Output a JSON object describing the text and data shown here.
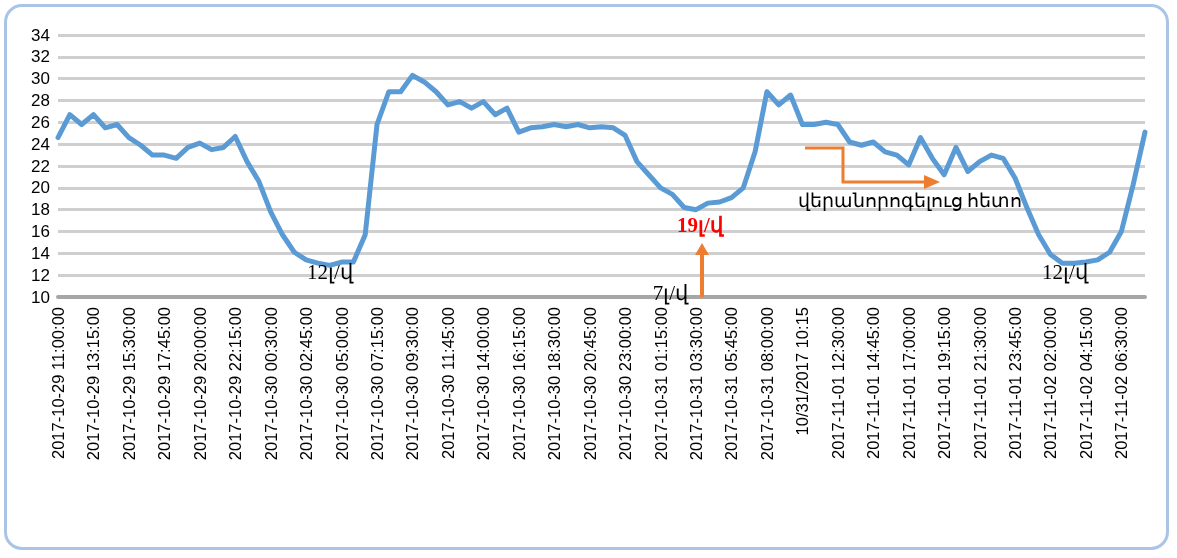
{
  "chart_data": {
    "type": "line",
    "categories": [
      "2017-10-29 11:00:00",
      null,
      null,
      "2017-10-29 13:15:00",
      null,
      null,
      "2017-10-29 15:30:00",
      null,
      null,
      "2017-10-29 17:45:00",
      null,
      null,
      "2017-10-29 20:00:00",
      null,
      null,
      "2017-10-29 22:15:00",
      null,
      null,
      "2017-10-30 00:30:00",
      null,
      null,
      "2017-10-30 02:45:00",
      null,
      null,
      "2017-10-30 05:00:00",
      null,
      null,
      "2017-10-30 07:15:00",
      null,
      null,
      "2017-10-30 09:30:00",
      null,
      null,
      "2017-10-30 11:45:00",
      null,
      null,
      "2017-10-30 14:00:00",
      null,
      null,
      "2017-10-30 16:15:00",
      null,
      null,
      "2017-10-30 18:30:00",
      null,
      null,
      "2017-10-30 20:45:00",
      null,
      null,
      "2017-10-30 23:00:00",
      null,
      null,
      "2017-10-31 01:15:00",
      null,
      null,
      "2017-10-31 03:30:00",
      null,
      null,
      "2017-10-31 05:45:00",
      null,
      null,
      "2017-10-31 08:00:00",
      null,
      null,
      "10/31/2017 10:15",
      null,
      null,
      "2017-11-01 12:30:00",
      null,
      null,
      "2017-11-01 14:45:00",
      null,
      null,
      "2017-11-01 17:00:00",
      null,
      null,
      "2017-11-01 19:15:00",
      null,
      null,
      "2017-11-01 21:30:00",
      null,
      null,
      "2017-11-01 23:45:00",
      null,
      null,
      "2017-11-02 02:00:00",
      null,
      null,
      "2017-11-02 04:15:00",
      null,
      null,
      "2017-11-02 06:30:00",
      null,
      null
    ],
    "series": [
      {
        "color": "#5b9bd5",
        "values": [
          24.6,
          26.7,
          25.8,
          26.7,
          25.5,
          25.8,
          24.6,
          23.9,
          23.0,
          23.0,
          22.7,
          23.7,
          24.1,
          23.5,
          23.7,
          24.7,
          22.4,
          20.6,
          17.8,
          15.7,
          14.1,
          13.4,
          13.1,
          12.9,
          13.2,
          13.2,
          15.7,
          25.8,
          28.8,
          28.8,
          30.3,
          29.7,
          28.8,
          27.6,
          27.9,
          27.3,
          27.9,
          26.7,
          27.3,
          25.1,
          25.5,
          25.6,
          25.8,
          25.6,
          25.8,
          25.5,
          25.6,
          25.5,
          24.8,
          22.4,
          21.2,
          20.0,
          19.4,
          18.2,
          18.0,
          18.6,
          18.7,
          19.1,
          20.0,
          23.3,
          28.8,
          27.6,
          28.5,
          25.8,
          25.8,
          26.0,
          25.8,
          24.2,
          23.9,
          24.2,
          23.3,
          23.0,
          22.1,
          24.6,
          22.7,
          21.2,
          23.7,
          21.5,
          22.4,
          23.0,
          22.7,
          20.9,
          18.2,
          15.7,
          13.9,
          13.1,
          13.1,
          13.2,
          13.4,
          14.1,
          16.0,
          20.3,
          25.1
        ]
      }
    ],
    "ylim": [
      10,
      34
    ],
    "yticks": [
      10,
      12,
      14,
      16,
      18,
      20,
      22,
      24,
      26,
      28,
      30,
      32,
      34
    ],
    "grid": "y",
    "marker": "none",
    "line_style": "solid",
    "annotations": [
      "12լ/վ",
      "19լ/վ",
      "7լ/վ",
      "վերանորոգելուց հետո",
      "12լ/վ"
    ]
  }
}
